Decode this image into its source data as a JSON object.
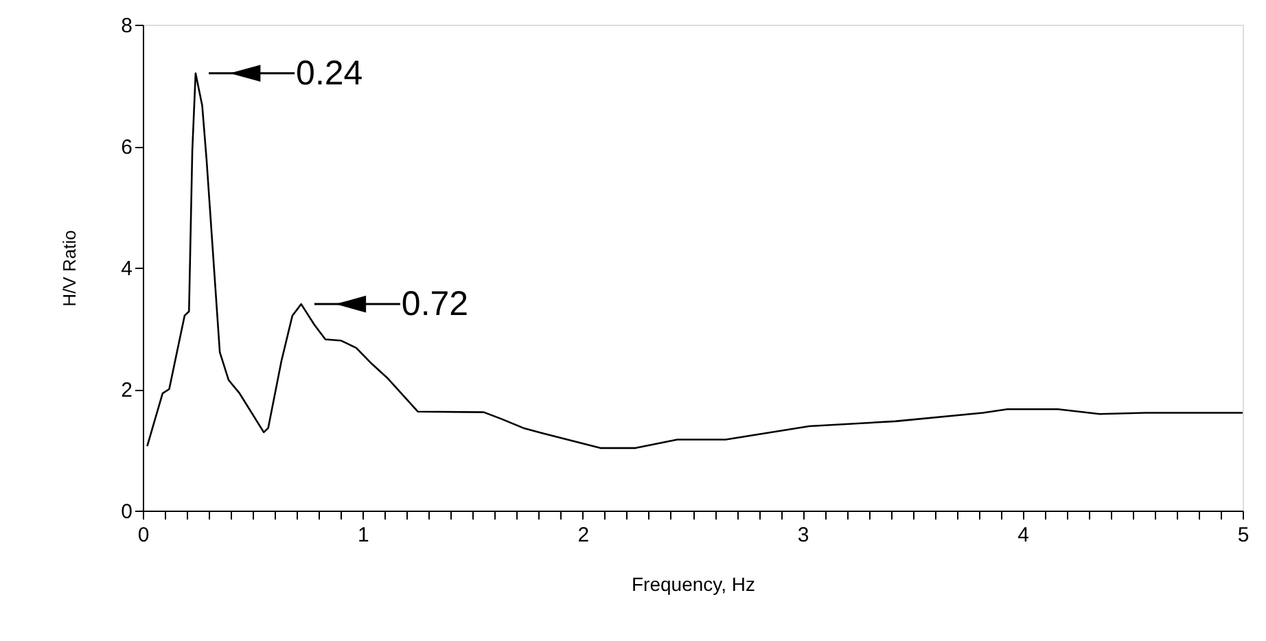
{
  "chart_data": {
    "type": "line",
    "xlabel": "Frequency, Hz",
    "ylabel": "H/V Ratio",
    "x": [
      0.02,
      0.09,
      0.12,
      0.19,
      0.21,
      0.225,
      0.24,
      0.27,
      0.29,
      0.35,
      0.39,
      0.44,
      0.55,
      0.57,
      0.63,
      0.68,
      0.72,
      0.78,
      0.83,
      0.9,
      0.97,
      1.04,
      1.11,
      1.25,
      1.55,
      1.63,
      1.73,
      1.82,
      2.08,
      2.24,
      2.43,
      2.65,
      3.03,
      3.42,
      3.82,
      3.93,
      4.16,
      4.35,
      4.56,
      5.0
    ],
    "series": [
      {
        "color": "#000000",
        "values": [
          1.06,
          1.93,
          2.0,
          3.21,
          3.28,
          5.92,
          7.2,
          6.67,
          5.77,
          2.61,
          2.15,
          1.93,
          1.29,
          1.36,
          2.46,
          3.21,
          3.4,
          3.06,
          2.82,
          2.8,
          2.68,
          2.42,
          2.19,
          1.63,
          1.62,
          1.51,
          1.36,
          1.27,
          1.03,
          1.03,
          1.17,
          1.17,
          1.39,
          1.47,
          1.61,
          1.67,
          1.67,
          1.59,
          1.61,
          1.61
        ]
      }
    ],
    "annotations": [
      {
        "text": "0.24",
        "x": 0.24,
        "y": 7.2
      },
      {
        "text": "0.72",
        "x": 0.72,
        "y": 3.4
      }
    ],
    "xlim": [
      0,
      5
    ],
    "ylim": [
      0,
      8
    ],
    "xticks": [
      0,
      {
        "value": 0.1,
        "label": null
      },
      {
        "value": 0.2,
        "label": null
      },
      {
        "value": 0.3,
        "label": null
      },
      {
        "value": 0.4,
        "label": null
      },
      {
        "value": 0.5,
        "label": null
      },
      {
        "value": 0.6,
        "label": null
      },
      {
        "value": 0.7,
        "label": null
      },
      {
        "value": 0.8,
        "label": null
      },
      {
        "value": 0.9,
        "label": null
      },
      1,
      {
        "value": 1.1,
        "label": null
      },
      {
        "value": 1.2,
        "label": null
      },
      {
        "value": 1.3,
        "label": null
      },
      {
        "value": 1.4,
        "label": null
      },
      {
        "value": 1.5,
        "label": null
      },
      {
        "value": 1.6,
        "label": null
      },
      {
        "value": 1.7,
        "label": null
      },
      {
        "value": 1.8,
        "label": null
      },
      {
        "value": 1.9,
        "label": null
      },
      2,
      {
        "value": 2.1,
        "label": null
      },
      {
        "value": 2.2,
        "label": null
      },
      {
        "value": 2.3,
        "label": null
      },
      {
        "value": 2.4,
        "label": null
      },
      {
        "value": 2.5,
        "label": null
      },
      {
        "value": 2.6,
        "label": null
      },
      {
        "value": 2.7,
        "label": null
      },
      {
        "value": 2.8,
        "label": null
      },
      {
        "value": 2.9,
        "label": null
      },
      3,
      {
        "value": 3.1,
        "label": null
      },
      {
        "value": 3.2,
        "label": null
      },
      {
        "value": 3.3,
        "label": null
      },
      {
        "value": 3.4,
        "label": null
      },
      {
        "value": 3.5,
        "label": null
      },
      {
        "value": 3.6,
        "label": null
      },
      {
        "value": 3.7,
        "label": null
      },
      {
        "value": 3.8,
        "label": null
      },
      {
        "value": 3.9,
        "label": null
      },
      4,
      {
        "value": 4.1,
        "label": null
      },
      {
        "value": 4.2,
        "label": null
      },
      {
        "value": 4.3,
        "label": null
      },
      {
        "value": 4.4,
        "label": null
      },
      {
        "value": 4.5,
        "label": null
      },
      {
        "value": 4.6,
        "label": null
      },
      {
        "value": 4.7,
        "label": null
      },
      {
        "value": 4.8,
        "label": null
      },
      {
        "value": 4.9,
        "label": null
      },
      5
    ],
    "yticks": [
      0,
      2,
      4,
      6,
      8
    ],
    "grid": false,
    "marker": "none",
    "line_style": "solid"
  }
}
